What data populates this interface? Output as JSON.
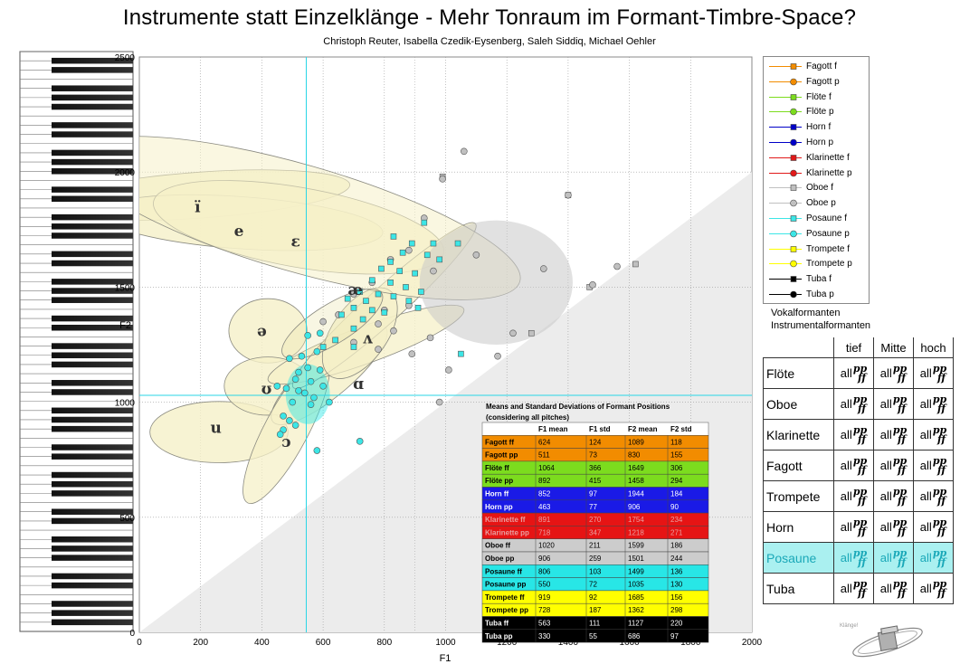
{
  "title": "Instrumente statt Einzelklänge - Mehr Tonraum im Formant-Timbre-Space?",
  "subtitle": "Christoph Reuter, Isabella Czedik-Eysenberg, Saleh Siddiq, Michael Oehler",
  "chart_data": {
    "type": "scatter",
    "xlabel": "F1",
    "ylabel": "F2",
    "xlim": [
      0,
      2000
    ],
    "ylim": [
      0,
      2500
    ],
    "x_ticks": [
      0,
      200,
      400,
      600,
      800,
      1000,
      1200,
      1400,
      1600,
      1800,
      2000
    ],
    "y_ticks": [
      0,
      500,
      1000,
      1500,
      2000,
      2500
    ],
    "grid": true,
    "reference_lines": {
      "x": 545,
      "y": 1030
    },
    "vowels": [
      {
        "label": "ï",
        "f1": 190,
        "f2": 1850
      },
      {
        "label": "e",
        "f1": 325,
        "f2": 1745
      },
      {
        "label": "ɛ",
        "f1": 510,
        "f2": 1700
      },
      {
        "label": "æ",
        "f1": 705,
        "f2": 1490
      },
      {
        "label": "ə",
        "f1": 400,
        "f2": 1310
      },
      {
        "label": "ʌ",
        "f1": 745,
        "f2": 1280
      },
      {
        "label": "ʊ",
        "f1": 415,
        "f2": 1060
      },
      {
        "label": "ɑ",
        "f1": 715,
        "f2": 1080
      },
      {
        "label": "u",
        "f1": 250,
        "f2": 890
      },
      {
        "label": "ɔ",
        "f1": 480,
        "f2": 830
      }
    ],
    "series": [
      {
        "name": "Fagott f",
        "color": "#f28c00",
        "marker": "square",
        "points": []
      },
      {
        "name": "Fagott p",
        "color": "#f28c00",
        "marker": "circle",
        "points": []
      },
      {
        "name": "Flöte f",
        "color": "#7cdc1e",
        "marker": "square",
        "points": []
      },
      {
        "name": "Flöte p",
        "color": "#7cdc1e",
        "marker": "circle",
        "points": []
      },
      {
        "name": "Horn f",
        "color": "#0000c8",
        "marker": "square",
        "points": []
      },
      {
        "name": "Horn p",
        "color": "#0000c8",
        "marker": "circle",
        "points": []
      },
      {
        "name": "Klarinette f",
        "color": "#e11919",
        "marker": "square",
        "points": []
      },
      {
        "name": "Klarinette p",
        "color": "#e11919",
        "marker": "circle",
        "points": []
      },
      {
        "name": "Oboe f",
        "color": "#c0c0c0",
        "marker": "square",
        "points": [
          [
            990,
            1980
          ],
          [
            1400,
            1900
          ],
          [
            1620,
            1600
          ],
          [
            1280,
            1300
          ],
          [
            1470,
            1500
          ]
        ]
      },
      {
        "name": "Oboe p",
        "color": "#c0c0c0",
        "marker": "circle",
        "points": [
          [
            1060,
            2090
          ],
          [
            990,
            1970
          ],
          [
            1400,
            1900
          ],
          [
            930,
            1800
          ],
          [
            1100,
            1640
          ],
          [
            1320,
            1580
          ],
          [
            1560,
            1590
          ],
          [
            1480,
            1510
          ],
          [
            1220,
            1300
          ],
          [
            1170,
            1200
          ],
          [
            960,
            1570
          ],
          [
            880,
            1660
          ],
          [
            820,
            1620
          ],
          [
            760,
            1520
          ],
          [
            700,
            1470
          ],
          [
            800,
            1400
          ],
          [
            880,
            1420
          ],
          [
            650,
            1380
          ],
          [
            600,
            1350
          ],
          [
            700,
            1260
          ],
          [
            830,
            1310
          ],
          [
            950,
            1280
          ],
          [
            1010,
            1140
          ],
          [
            890,
            1210
          ],
          [
            780,
            1230
          ],
          [
            980,
            1000
          ],
          [
            780,
            1340
          ]
        ]
      },
      {
        "name": "Posaune f",
        "color": "#3ce6e6",
        "marker": "square",
        "points": [
          [
            930,
            1780
          ],
          [
            830,
            1720
          ],
          [
            890,
            1690
          ],
          [
            960,
            1690
          ],
          [
            1040,
            1690
          ],
          [
            860,
            1650
          ],
          [
            940,
            1640
          ],
          [
            980,
            1620
          ],
          [
            820,
            1610
          ],
          [
            790,
            1580
          ],
          [
            850,
            1570
          ],
          [
            900,
            1560
          ],
          [
            760,
            1530
          ],
          [
            820,
            1520
          ],
          [
            870,
            1500
          ],
          [
            920,
            1480
          ],
          [
            780,
            1470
          ],
          [
            830,
            1460
          ],
          [
            720,
            1480
          ],
          [
            680,
            1450
          ],
          [
            740,
            1440
          ],
          [
            880,
            1440
          ],
          [
            910,
            1410
          ],
          [
            700,
            1410
          ],
          [
            760,
            1400
          ],
          [
            800,
            1390
          ],
          [
            660,
            1380
          ],
          [
            730,
            1360
          ],
          [
            700,
            1320
          ],
          [
            640,
            1270
          ],
          [
            600,
            1240
          ],
          [
            1050,
            1210
          ],
          [
            700,
            1240
          ]
        ]
      },
      {
        "name": "Posaune p",
        "color": "#3ce6e6",
        "marker": "circle",
        "points": [
          [
            530,
            1200
          ],
          [
            490,
            1190
          ],
          [
            520,
            1130
          ],
          [
            550,
            1150
          ],
          [
            590,
            1140
          ],
          [
            510,
            1100
          ],
          [
            560,
            1090
          ],
          [
            600,
            1070
          ],
          [
            480,
            1060
          ],
          [
            520,
            1050
          ],
          [
            450,
            1070
          ],
          [
            540,
            1040
          ],
          [
            570,
            1020
          ],
          [
            620,
            1000
          ],
          [
            500,
            1000
          ],
          [
            560,
            990
          ],
          [
            470,
            940
          ],
          [
            490,
            920
          ],
          [
            510,
            900
          ],
          [
            470,
            880
          ],
          [
            460,
            860
          ],
          [
            580,
            1220
          ],
          [
            590,
            1300
          ],
          [
            550,
            1290
          ],
          [
            580,
            790
          ],
          [
            720,
            830
          ]
        ]
      },
      {
        "name": "Trompete f",
        "color": "#ffff00",
        "marker": "square",
        "points": []
      },
      {
        "name": "Trompete p",
        "color": "#ffff00",
        "marker": "circle",
        "points": []
      },
      {
        "name": "Tuba f",
        "color": "#000000",
        "marker": "square",
        "points": []
      },
      {
        "name": "Tuba p",
        "color": "#000000",
        "marker": "circle",
        "points": []
      }
    ],
    "stats_table": {
      "title": "Means and Standard Deviations of Formant Positions",
      "subtitle": "(considering all pitches)",
      "headers": [
        "",
        "F1 mean",
        "F1 std",
        "F2 mean",
        "F2 std"
      ],
      "rows": [
        {
          "label": "Fagott ff",
          "f1_mean": "624",
          "f1_std": "124",
          "f2_mean": "1089",
          "f2_std": "118",
          "bg": "#f28c00",
          "fg": "#000000"
        },
        {
          "label": "Fagott pp",
          "f1_mean": "511",
          "f1_std": "73",
          "f2_mean": "830",
          "f2_std": "155",
          "bg": "#f28c00",
          "fg": "#000000"
        },
        {
          "label": "Flöte ff",
          "f1_mean": "1064",
          "f1_std": "366",
          "f2_mean": "1649",
          "f2_std": "306",
          "bg": "#7cdc1e",
          "fg": "#000000"
        },
        {
          "label": "Flöte pp",
          "f1_mean": "892",
          "f1_std": "415",
          "f2_mean": "1458",
          "f2_std": "294",
          "bg": "#7cdc1e",
          "fg": "#000000"
        },
        {
          "label": "Horn ff",
          "f1_mean": "852",
          "f1_std": "97",
          "f2_mean": "1944",
          "f2_std": "184",
          "bg": "#1a1ae6",
          "fg": "#ffffff"
        },
        {
          "label": "Horn pp",
          "f1_mean": "463",
          "f1_std": "77",
          "f2_mean": "906",
          "f2_std": "90",
          "bg": "#1a1ae6",
          "fg": "#ffffff"
        },
        {
          "label": "Klarinette ff",
          "f1_mean": "891",
          "f1_std": "270",
          "f2_mean": "1754",
          "f2_std": "234",
          "bg": "#e61414",
          "fg": "#e8a0a0"
        },
        {
          "label": "Klarinette pp",
          "f1_mean": "718",
          "f1_std": "347",
          "f2_mean": "1218",
          "f2_std": "271",
          "bg": "#e61414",
          "fg": "#e8a0a0"
        },
        {
          "label": "Oboe ff",
          "f1_mean": "1020",
          "f1_std": "211",
          "f2_mean": "1599",
          "f2_std": "186",
          "bg": "#cccccc",
          "fg": "#000000"
        },
        {
          "label": "Oboe pp",
          "f1_mean": "906",
          "f1_std": "259",
          "f2_mean": "1501",
          "f2_std": "244",
          "bg": "#cccccc",
          "fg": "#000000"
        },
        {
          "label": "Posaune ff",
          "f1_mean": "806",
          "f1_std": "103",
          "f2_mean": "1499",
          "f2_std": "136",
          "bg": "#28e6e6",
          "fg": "#000000"
        },
        {
          "label": "Posaune pp",
          "f1_mean": "550",
          "f1_std": "72",
          "f2_mean": "1035",
          "f2_std": "130",
          "bg": "#28e6e6",
          "fg": "#000000"
        },
        {
          "label": "Trompete ff",
          "f1_mean": "919",
          "f1_std": "92",
          "f2_mean": "1685",
          "f2_std": "156",
          "bg": "#ffff00",
          "fg": "#000000"
        },
        {
          "label": "Trompete pp",
          "f1_mean": "728",
          "f1_std": "187",
          "f2_mean": "1362",
          "f2_std": "298",
          "bg": "#ffff00",
          "fg": "#000000"
        },
        {
          "label": "Tuba ff",
          "f1_mean": "563",
          "f1_std": "111",
          "f2_mean": "1127",
          "f2_std": "220",
          "bg": "#000000",
          "fg": "#ffffff"
        },
        {
          "label": "Tuba pp",
          "f1_mean": "330",
          "f1_std": "55",
          "f2_mean": "686",
          "f2_std": "97",
          "bg": "#000000",
          "fg": "#ffffff"
        }
      ]
    }
  },
  "legend_right": {
    "heading1": "Vokalformanten",
    "heading2": "Instrumentalformanten",
    "columns": [
      "tief",
      "Mitte",
      "hoch"
    ],
    "cell_all": "all",
    "cell_top": "pp",
    "cell_bottom": "ff",
    "instruments": [
      "Flöte",
      "Oboe",
      "Klarinette",
      "Fagott",
      "Trompete",
      "Horn",
      "Posaune",
      "Tuba"
    ],
    "highlighted": "Posaune"
  },
  "logo_text": "Klänge!"
}
